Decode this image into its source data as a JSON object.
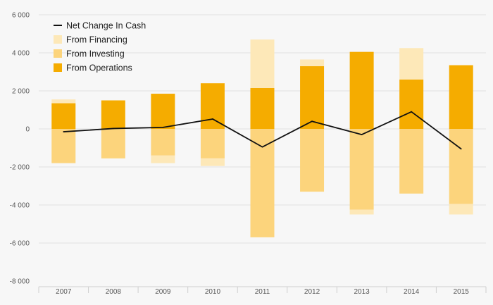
{
  "chart_data": {
    "type": "bar",
    "stacked": true,
    "categories": [
      "2007",
      "2008",
      "2009",
      "2010",
      "2011",
      "2012",
      "2013",
      "2014",
      "2015"
    ],
    "ylim": [
      -8000,
      6000
    ],
    "yticks": [
      -8000,
      -6000,
      -4000,
      -2000,
      0,
      2000,
      4000,
      6000
    ],
    "ytick_labels": [
      "-8 000",
      "-6 000",
      "-4 000",
      "-2 000",
      "0",
      "2 000",
      "4 000",
      "6 000"
    ],
    "grid": true,
    "legend_position": "top-left",
    "series": [
      {
        "name": "From Operations",
        "kind": "bar",
        "color": "#f5ac00",
        "values": [
          1350,
          1500,
          1850,
          2400,
          2150,
          3300,
          4050,
          2600,
          3350
        ]
      },
      {
        "name": "From Investing",
        "kind": "bar",
        "color": "#fcd47c",
        "values": [
          -1800,
          -1550,
          -1400,
          -1550,
          -5700,
          -3300,
          -4250,
          -3400,
          -3950
        ]
      },
      {
        "name": "From Financing",
        "kind": "bar",
        "color": "#fde8b8",
        "values": [
          200,
          0,
          -400,
          -400,
          2550,
          350,
          -250,
          1650,
          -550
        ]
      },
      {
        "name": "Net Change In Cash",
        "kind": "line",
        "color": "#111111",
        "values": [
          -150,
          20,
          80,
          520,
          -950,
          400,
          -300,
          900,
          -1050
        ]
      }
    ]
  },
  "legend": [
    {
      "label": "Net Change In Cash",
      "swatch": "line",
      "color": "#111111"
    },
    {
      "label": "From Financing",
      "swatch": "box",
      "color": "#fde8b8"
    },
    {
      "label": "From Investing",
      "swatch": "box",
      "color": "#fcd47c"
    },
    {
      "label": "From Operations",
      "swatch": "box",
      "color": "#f5ac00"
    }
  ]
}
